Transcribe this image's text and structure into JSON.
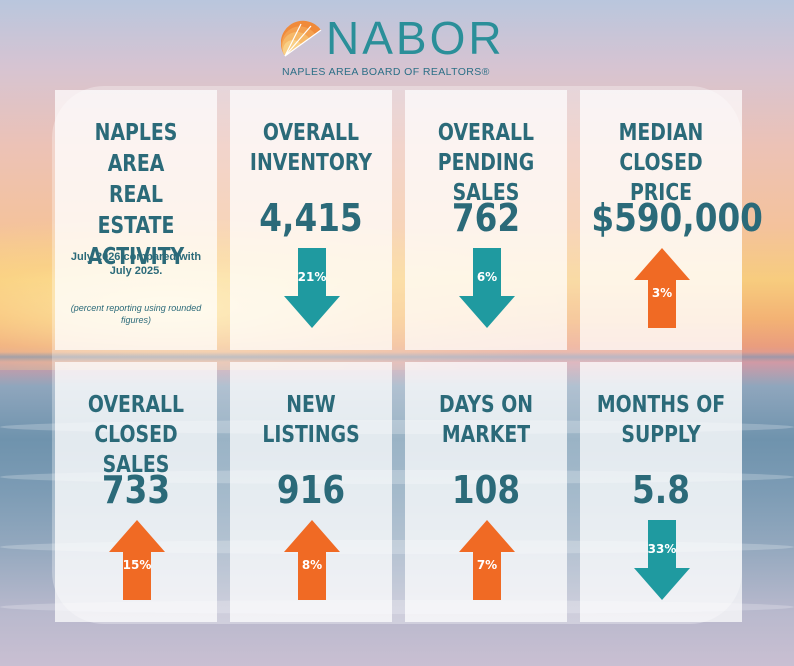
{
  "header": {
    "logo_text": "NABOR",
    "logo_subtitle": "NAPLES AREA BOARD OF REALTORS®"
  },
  "intro": {
    "title_lines": [
      "NAPLES",
      "AREA",
      "REAL ESTATE",
      "ACTIVITY"
    ],
    "comparison": "July 2026 compared with July 2025.",
    "note": "(percent reporting using rounded figures)"
  },
  "colors": {
    "teal_text": "#2b6a79",
    "arrow_down": "#1f9aa0",
    "arrow_up": "#f06a24",
    "logo_teal": "#2a8f99"
  },
  "metrics": [
    {
      "title_lines": [
        "OVERALL",
        "INVENTORY"
      ],
      "value": "4,415",
      "change": "21%",
      "direction": "down"
    },
    {
      "title_lines": [
        "OVERALL",
        "PENDING SALES"
      ],
      "value": "762",
      "change": "6%",
      "direction": "down"
    },
    {
      "title_lines": [
        "MEDIAN",
        "CLOSED PRICE"
      ],
      "value": "$590,000",
      "change": "3%",
      "direction": "up"
    },
    {
      "title_lines": [
        "OVERALL",
        "CLOSED SALES"
      ],
      "value": "733",
      "change": "15%",
      "direction": "up"
    },
    {
      "title_lines": [
        "NEW",
        "LISTINGS"
      ],
      "value": "916",
      "change": "8%",
      "direction": "up"
    },
    {
      "title_lines": [
        "DAYS ON",
        "MARKET"
      ],
      "value": "108",
      "change": "7%",
      "direction": "up"
    },
    {
      "title_lines": [
        "MONTHS OF",
        "SUPPLY"
      ],
      "value": "5.8",
      "change": "33%",
      "direction": "down"
    }
  ]
}
